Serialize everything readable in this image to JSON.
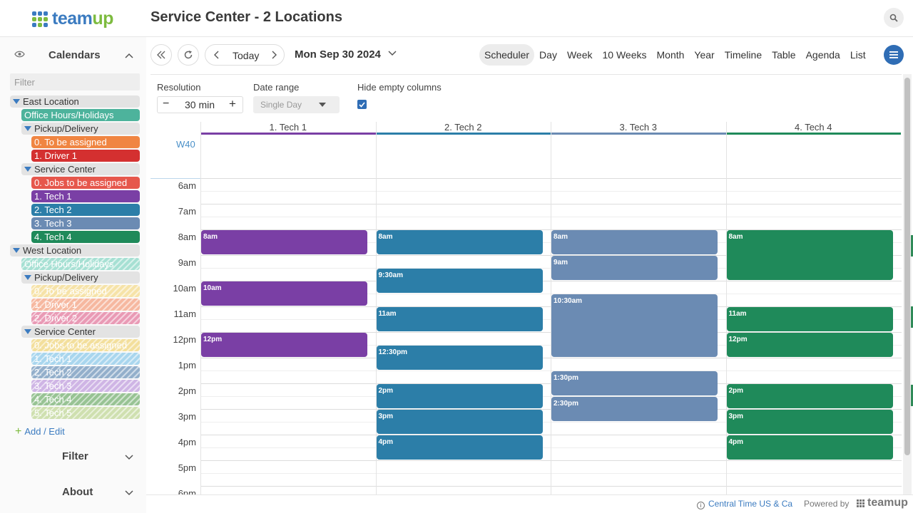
{
  "app": {
    "logo": {
      "part1": "team",
      "part2": "up"
    },
    "title": "Service Center - 2 Locations",
    "brand_colors": {
      "blue": "#3b7bc0",
      "green": "#7dbb3f"
    }
  },
  "header": {
    "search_icon": "search-icon"
  },
  "sidebar": {
    "calendars_title": "Calendars",
    "filter_placeholder": "Filter",
    "items": [
      {
        "type": "group",
        "level": 0,
        "label": "East Location"
      },
      {
        "type": "cal",
        "level": 1,
        "label": "Office Hours/Holidays",
        "color": "#4db39c"
      },
      {
        "type": "group",
        "level": 1,
        "label": "Pickup/Delivery"
      },
      {
        "type": "cal",
        "level": 2,
        "label": "0. To be assigned",
        "color": "#f08542"
      },
      {
        "type": "cal",
        "level": 2,
        "label": "1. Driver 1",
        "color": "#d43030"
      },
      {
        "type": "group",
        "level": 1,
        "label": "Service Center"
      },
      {
        "type": "cal",
        "level": 2,
        "label": "0. Jobs to be assigned",
        "color": "#e6574c"
      },
      {
        "type": "cal",
        "level": 2,
        "label": "1. Tech 1",
        "color": "#7a3fa5"
      },
      {
        "type": "cal",
        "level": 2,
        "label": "2. Tech 2",
        "color": "#2c7ea8"
      },
      {
        "type": "cal",
        "level": 2,
        "label": "3. Tech 3",
        "color": "#6b8bb3"
      },
      {
        "type": "cal",
        "level": 2,
        "label": "4. Tech 4",
        "color": "#1f8a5a"
      },
      {
        "type": "group",
        "level": 0,
        "label": "West Location"
      },
      {
        "type": "cal",
        "level": 1,
        "label": "Office Hours/Holidays",
        "color": "#a6e0d3",
        "hatched": true
      },
      {
        "type": "group",
        "level": 1,
        "label": "Pickup/Delivery"
      },
      {
        "type": "cal",
        "level": 2,
        "label": "0. To be assigned",
        "color": "#f6e3a8",
        "hatched": true
      },
      {
        "type": "cal",
        "level": 2,
        "label": "1. Driver 1",
        "color": "#f6b8a0",
        "hatched": true
      },
      {
        "type": "cal",
        "level": 2,
        "label": "2. Driver 2",
        "color": "#e99ab5",
        "hatched": true
      },
      {
        "type": "group",
        "level": 1,
        "label": "Service Center"
      },
      {
        "type": "cal",
        "level": 2,
        "label": "0. Jobs to be assigned",
        "color": "#f3df9c",
        "hatched": true
      },
      {
        "type": "cal",
        "level": 2,
        "label": "1. Tech 1",
        "color": "#a9d6ee",
        "hatched": true
      },
      {
        "type": "cal",
        "level": 2,
        "label": "2. Tech 2",
        "color": "#93afcb",
        "hatched": true
      },
      {
        "type": "cal",
        "level": 2,
        "label": "3. Tech 3",
        "color": "#cfb5e5",
        "hatched": true
      },
      {
        "type": "cal",
        "level": 2,
        "label": "4. Tech 4",
        "color": "#98c394",
        "hatched": true
      },
      {
        "type": "cal",
        "level": 2,
        "label": "5. Tech 5",
        "color": "#cfe0b0",
        "hatched": true
      }
    ],
    "add_edit": "Add / Edit",
    "filter_section": "Filter",
    "about_section": "About"
  },
  "toolbar": {
    "today": "Today",
    "date": "Mon Sep 30 2024",
    "views": [
      "Scheduler",
      "Day",
      "Week",
      "10 Weeks",
      "Month",
      "Year",
      "Timeline",
      "Table",
      "Agenda",
      "List"
    ],
    "active_view": "Scheduler"
  },
  "options": {
    "resolution_label": "Resolution",
    "resolution_value": "30 min",
    "date_range_label": "Date range",
    "date_range_value": "Single Day",
    "hide_empty_label": "Hide empty columns",
    "hide_empty_checked": true
  },
  "scheduler": {
    "week_label": "W40",
    "columns": [
      {
        "name": "1. Tech 1",
        "color": "#7a3fa5"
      },
      {
        "name": "2. Tech 2",
        "color": "#2c7ea8"
      },
      {
        "name": "3. Tech 3",
        "color": "#6b8bb3"
      },
      {
        "name": "4. Tech 4",
        "color": "#1f8a5a"
      }
    ],
    "hours": [
      "6am",
      "7am",
      "8am",
      "9am",
      "10am",
      "11am",
      "12pm",
      "1pm",
      "2pm",
      "3pm",
      "4pm",
      "5pm",
      "6pm"
    ],
    "start_hour": 6,
    "events": [
      {
        "col": 0,
        "start": 8,
        "end": 9,
        "label": "8am"
      },
      {
        "col": 0,
        "start": 10,
        "end": 11,
        "label": "10am"
      },
      {
        "col": 0,
        "start": 12,
        "end": 13,
        "label": "12pm"
      },
      {
        "col": 1,
        "start": 8,
        "end": 9,
        "label": "8am"
      },
      {
        "col": 1,
        "start": 9.5,
        "end": 10.5,
        "label": "9:30am"
      },
      {
        "col": 1,
        "start": 11,
        "end": 12,
        "label": "11am"
      },
      {
        "col": 1,
        "start": 12.5,
        "end": 13.5,
        "label": "12:30pm"
      },
      {
        "col": 1,
        "start": 14,
        "end": 15,
        "label": "2pm"
      },
      {
        "col": 1,
        "start": 15,
        "end": 16,
        "label": "3pm"
      },
      {
        "col": 1,
        "start": 16,
        "end": 17,
        "label": "4pm"
      },
      {
        "col": 2,
        "start": 8,
        "end": 9,
        "label": "8am"
      },
      {
        "col": 2,
        "start": 9,
        "end": 10,
        "label": "9am"
      },
      {
        "col": 2,
        "start": 10.5,
        "end": 13,
        "label": "10:30am"
      },
      {
        "col": 2,
        "start": 13.5,
        "end": 14.5,
        "label": "1:30pm"
      },
      {
        "col": 2,
        "start": 14.5,
        "end": 15.5,
        "label": "2:30pm"
      },
      {
        "col": 3,
        "start": 8,
        "end": 10,
        "label": "8am"
      },
      {
        "col": 3,
        "start": 11,
        "end": 12,
        "label": "11am"
      },
      {
        "col": 3,
        "start": 12,
        "end": 13,
        "label": "12pm"
      },
      {
        "col": 3,
        "start": 14,
        "end": 15,
        "label": "2pm"
      },
      {
        "col": 3,
        "start": 15,
        "end": 16,
        "label": "3pm"
      },
      {
        "col": 3,
        "start": 16,
        "end": 17,
        "label": "4pm"
      }
    ]
  },
  "footer": {
    "timezone": "Central Time US & Ca",
    "powered_by": "Powered by",
    "brand": "teamup"
  }
}
